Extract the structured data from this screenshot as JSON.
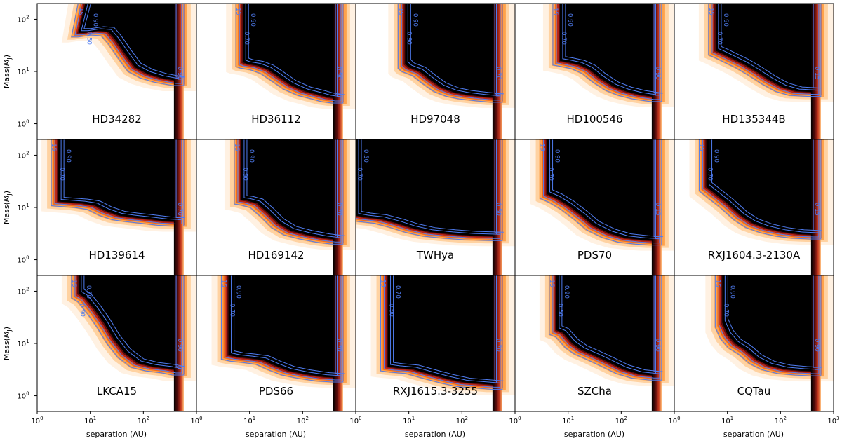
{
  "figure": {
    "ylabel_base": "Mass(",
    "ylabel_sub": "J",
    "ylabel_end": ")",
    "xlabel": "separation (AU)"
  },
  "axes": {
    "x_ticks": [
      {
        "base": "10",
        "exp": "0"
      },
      {
        "base": "10",
        "exp": "1"
      },
      {
        "base": "10",
        "exp": "2"
      },
      {
        "base": "10",
        "exp": "3"
      }
    ],
    "x_tick_values": [
      1,
      10,
      100,
      1000
    ],
    "y_ticks": [
      {
        "base": "10",
        "exp": "0"
      },
      {
        "base": "10",
        "exp": "1"
      },
      {
        "base": "10",
        "exp": "2"
      }
    ],
    "y_tick_values": [
      1,
      10,
      100
    ]
  },
  "chart_data": {
    "type": "heatmap",
    "description_grid": "3x5 grid of detection-probability maps with contours",
    "xscale": "log",
    "yscale": "log",
    "xlim": [
      1,
      1000
    ],
    "ylim": [
      0.5,
      200
    ],
    "xlabel": "separation (AU)",
    "ylabel": "Mass(M_J)",
    "contour_levels": [
      "0.15",
      "0.50",
      "0.70",
      "0.90"
    ],
    "colors": {
      "high": "#000000",
      "mid": "#8b1a1a",
      "low": "#ff8c00",
      "edge": "#ffd9b0",
      "contour": "#4f7cf0"
    },
    "panels": [
      {
        "name": "HD34282",
        "labels": [
          "15",
          "0.50",
          "0.90",
          "0.90"
        ],
        "a_min": 8,
        "a_max": 480,
        "top": 200,
        "boundary": [
          [
            6,
            55
          ],
          [
            8,
            55
          ],
          [
            14,
            60
          ],
          [
            22,
            58
          ],
          [
            30,
            40
          ],
          [
            45,
            22
          ],
          [
            70,
            12
          ],
          [
            120,
            9
          ],
          [
            220,
            7.5
          ],
          [
            480,
            6.5
          ]
        ]
      },
      {
        "name": "HD36112",
        "labels": [
          "15",
          "0.70",
          "0.90",
          "0.90"
        ],
        "a_min": 7.5,
        "a_max": 480,
        "top": 200,
        "boundary": [
          [
            7.5,
            15
          ],
          [
            9,
            14
          ],
          [
            14,
            13
          ],
          [
            22,
            11
          ],
          [
            35,
            8
          ],
          [
            60,
            5.5
          ],
          [
            110,
            4.2
          ],
          [
            200,
            3.6
          ],
          [
            300,
            3.2
          ],
          [
            480,
            3.0
          ]
        ]
      },
      {
        "name": "HD97048",
        "labels": [
          "15",
          "0.90",
          "0.90",
          "0.70"
        ],
        "a_min": 8.5,
        "a_max": 480,
        "top": 200,
        "boundary": [
          [
            8.5,
            14
          ],
          [
            10,
            12
          ],
          [
            16,
            10
          ],
          [
            25,
            7
          ],
          [
            40,
            5
          ],
          [
            70,
            4
          ],
          [
            120,
            3.6
          ],
          [
            250,
            3.3
          ],
          [
            480,
            3.1
          ]
        ]
      },
      {
        "name": "HD100546",
        "labels": [
          "15",
          "0.70",
          "0.90",
          "0.90"
        ],
        "a_min": 7,
        "a_max": 480,
        "top": 200,
        "boundary": [
          [
            7,
            16
          ],
          [
            10,
            15
          ],
          [
            16,
            13.5
          ],
          [
            25,
            11
          ],
          [
            40,
            7.5
          ],
          [
            70,
            5.2
          ],
          [
            120,
            4.2
          ],
          [
            220,
            3.6
          ],
          [
            480,
            3.2
          ]
        ]
      },
      {
        "name": "HD135344B",
        "labels": [
          "15",
          "0.70",
          "0.90",
          "0.15"
        ],
        "a_min": 6,
        "a_max": 480,
        "top": 200,
        "boundary": [
          [
            6,
            25
          ],
          [
            8,
            22
          ],
          [
            12,
            18
          ],
          [
            20,
            14
          ],
          [
            35,
            10
          ],
          [
            60,
            7
          ],
          [
            110,
            5
          ],
          [
            200,
            4.2
          ],
          [
            480,
            4.0
          ]
        ]
      },
      {
        "name": "HD139614",
        "labels": [
          "15",
          "0.70",
          "0.90",
          "0.70"
        ],
        "a_min": 2.5,
        "a_max": 480,
        "top": 200,
        "boundary": [
          [
            2.5,
            13
          ],
          [
            4,
            12.5
          ],
          [
            7,
            12
          ],
          [
            12,
            11
          ],
          [
            20,
            8.5
          ],
          [
            35,
            7
          ],
          [
            60,
            6.5
          ],
          [
            120,
            6
          ],
          [
            250,
            5.5
          ],
          [
            480,
            5.3
          ]
        ]
      },
      {
        "name": "HD169142",
        "labels": [
          "15",
          "0.90",
          "0.90",
          "0.70"
        ],
        "a_min": 7,
        "a_max": 480,
        "top": 200,
        "boundary": [
          [
            7,
            14
          ],
          [
            9,
            13.5
          ],
          [
            14,
            12
          ],
          [
            22,
            8
          ],
          [
            35,
            5
          ],
          [
            60,
            3.6
          ],
          [
            120,
            3.0
          ],
          [
            250,
            2.6
          ],
          [
            480,
            2.4
          ]
        ]
      },
      {
        "name": "TWHya",
        "labels": [
          "90",
          "0.70",
          "0.50",
          "0.50"
        ],
        "a_min": 1,
        "a_max": 480,
        "top": 200,
        "boundary": [
          [
            1,
            7
          ],
          [
            1.5,
            6.5
          ],
          [
            3,
            6
          ],
          [
            6,
            5
          ],
          [
            12,
            4
          ],
          [
            25,
            3.4
          ],
          [
            60,
            3.1
          ],
          [
            150,
            2.9
          ],
          [
            480,
            2.8
          ]
        ]
      },
      {
        "name": "PDS70",
        "labels": [
          "15",
          "0.70",
          "0.90",
          "0.15"
        ],
        "a_min": 4,
        "a_max": 480,
        "top": 200,
        "boundary": [
          [
            4,
            18
          ],
          [
            6,
            15
          ],
          [
            10,
            11
          ],
          [
            18,
            7
          ],
          [
            30,
            4.5
          ],
          [
            60,
            3.2
          ],
          [
            120,
            2.6
          ],
          [
            250,
            2.4
          ],
          [
            480,
            2.3
          ]
        ]
      },
      {
        "name": "RXJ1604.3-2130A",
        "labels": [
          "15",
          "0.70",
          "0.90",
          "0.15"
        ],
        "a_min": 4,
        "a_max": 480,
        "top": 200,
        "boundary": [
          [
            4,
            25
          ],
          [
            6,
            18
          ],
          [
            10,
            12
          ],
          [
            18,
            7
          ],
          [
            30,
            5
          ],
          [
            55,
            4
          ],
          [
            110,
            3.4
          ],
          [
            220,
            3.1
          ],
          [
            480,
            3.0
          ]
        ]
      },
      {
        "name": "LKCA15",
        "labels": [
          "15",
          "0.90",
          "0.70",
          "0.90"
        ],
        "a_min": 6,
        "a_max": 480,
        "top": 200,
        "boundary": [
          [
            6,
            90
          ],
          [
            8,
            75
          ],
          [
            12,
            45
          ],
          [
            18,
            25
          ],
          [
            28,
            12
          ],
          [
            45,
            6.5
          ],
          [
            80,
            4.2
          ],
          [
            150,
            3.6
          ],
          [
            300,
            3.3
          ],
          [
            480,
            3.0
          ]
        ]
      },
      {
        "name": "PDS66",
        "labels": [
          "15",
          "0.70",
          "0.90",
          "0.70"
        ],
        "a_min": 4,
        "a_max": 480,
        "top": 200,
        "boundary": [
          [
            4,
            6
          ],
          [
            6,
            5.5
          ],
          [
            10,
            5.2
          ],
          [
            18,
            4.8
          ],
          [
            30,
            3.8
          ],
          [
            55,
            3.0
          ],
          [
            110,
            2.6
          ],
          [
            250,
            2.3
          ],
          [
            480,
            2.2
          ]
        ]
      },
      {
        "name": "RXJ1615.3-3255",
        "labels": [
          "15",
          "0.90",
          "0.70",
          "0.70"
        ],
        "a_min": 4,
        "a_max": 480,
        "top": 200,
        "boundary": [
          [
            4,
            3.6
          ],
          [
            6,
            3.4
          ],
          [
            12,
            3.2
          ],
          [
            25,
            2.6
          ],
          [
            55,
            2.1
          ],
          [
            110,
            1.8
          ],
          [
            220,
            1.7
          ],
          [
            480,
            1.6
          ]
        ]
      },
      {
        "name": "SZCha",
        "labels": [
          "15",
          "0.50",
          "0.90",
          "0.90"
        ],
        "a_min": 6,
        "a_max": 480,
        "top": 200,
        "boundary": [
          [
            6,
            18
          ],
          [
            8,
            16
          ],
          [
            12,
            10
          ],
          [
            18,
            7.5
          ],
          [
            30,
            6
          ],
          [
            55,
            4.5
          ],
          [
            110,
            3.2
          ],
          [
            220,
            2.6
          ],
          [
            480,
            2.4
          ]
        ]
      },
      {
        "name": "CQTau",
        "labels": [
          "15",
          "0.70",
          "0.90",
          "0.90"
        ],
        "a_min": 8,
        "a_max": 480,
        "top": 200,
        "boundary": [
          [
            8,
            25
          ],
          [
            10,
            15
          ],
          [
            14,
            10
          ],
          [
            22,
            7.5
          ],
          [
            35,
            5
          ],
          [
            60,
            3.8
          ],
          [
            120,
            3.2
          ],
          [
            250,
            3.0
          ],
          [
            480,
            2.9
          ]
        ]
      }
    ]
  }
}
